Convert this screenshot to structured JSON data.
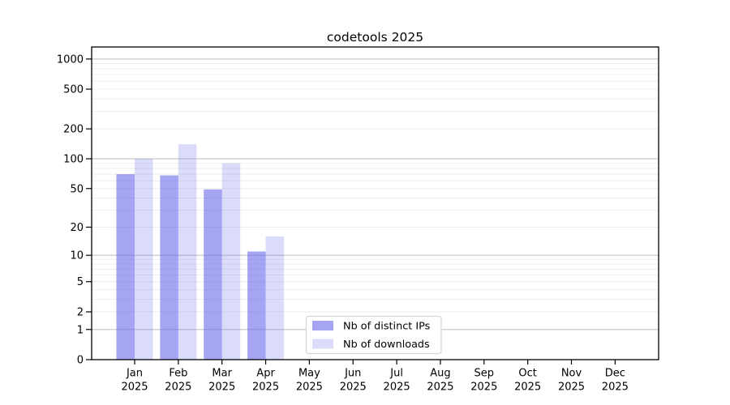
{
  "chart_data": {
    "type": "bar",
    "title": "codetools 2025",
    "categories": [
      "Jan",
      "Feb",
      "Mar",
      "Apr",
      "May",
      "Jun",
      "Jul",
      "Aug",
      "Sep",
      "Oct",
      "Nov",
      "Dec"
    ],
    "category_year": "2025",
    "series": [
      {
        "name": "Nb of distinct IPs",
        "fill": "rgba(110,110,235,0.62)",
        "values": [
          70,
          68,
          49,
          11,
          0,
          0,
          0,
          0,
          0,
          0,
          0,
          0
        ]
      },
      {
        "name": "Nb of downloads",
        "fill": "rgba(110,110,235,0.25)",
        "values": [
          100,
          140,
          90,
          16,
          0,
          0,
          0,
          0,
          0,
          0,
          0,
          0
        ]
      }
    ],
    "y_scale": "log10(value+1)",
    "y_ticks": [
      1000,
      500,
      200,
      100,
      50,
      20,
      10,
      5,
      2,
      1,
      0
    ],
    "ylim": [
      0,
      1000
    ],
    "grid": {
      "major_values": [
        1,
        10,
        100,
        1000
      ],
      "minor_decades": [
        1,
        10,
        100
      ],
      "major_color": "#c3c3c3",
      "minor_color": "#ebebeb"
    },
    "axis_color": "#000000",
    "legend": {
      "position": "inside-bottom-center",
      "background": "#ffffff",
      "border_color": "#d4d4d4"
    }
  }
}
